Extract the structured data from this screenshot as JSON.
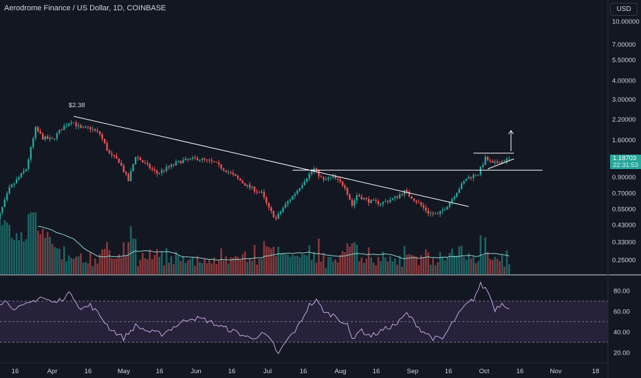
{
  "header": {
    "title": "Aerodrome Finance / US Dollar, 1D, COINBASE",
    "currency": "USD"
  },
  "price_badge": {
    "price": "1.18703",
    "countdown": "22:31:53"
  },
  "colors": {
    "background": "#131722",
    "up": "#26a69a",
    "down": "#ef5350",
    "ma_line": "#8fd7cf",
    "rsi_line": "#c9a7e4",
    "rsi_band": "#2a2540",
    "trendline": "#ffffff",
    "text": "#d1d4dc"
  },
  "chart_data": [
    {
      "type": "candlestick",
      "title": "Aerodrome Finance / US Dollar, 1D, COINBASE",
      "scale": "log",
      "ylim": [
        0.21,
        12.5
      ],
      "y_ticks": [
        10.0,
        7.0,
        5.5,
        4.0,
        3.0,
        2.2,
        1.6,
        0.9,
        0.7,
        0.55,
        0.43,
        0.33,
        0.25
      ],
      "y_tick_labels": [
        "10.00000",
        "7.00000",
        "5.50000",
        "4.00000",
        "3.00000",
        "2.20000",
        "1.60000",
        "0.90000",
        "0.70000",
        "0.55000",
        "0.43000",
        "0.33000",
        "0.25000"
      ],
      "x_tick_labels": [
        "16",
        "Apr",
        "16",
        "May",
        "16",
        "Jun",
        "16",
        "Jul",
        "16",
        "Aug",
        "16",
        "Sep",
        "16",
        "Oct",
        "16",
        "Nov",
        "18"
      ],
      "close_path": [
        {
          "x": "Mar 7",
          "y": 0.38
        },
        {
          "x": "Mar 14",
          "y": 0.75
        },
        {
          "x": "Mar 21",
          "y": 1.02
        },
        {
          "x": "Mar 25",
          "y": 1.9
        },
        {
          "x": "Mar 28",
          "y": 1.65
        },
        {
          "x": "Apr 1",
          "y": 1.6
        },
        {
          "x": "Apr 5",
          "y": 1.9
        },
        {
          "x": "Apr 9",
          "y": 2.15
        },
        {
          "x": "Apr 13",
          "y": 1.9
        },
        {
          "x": "Apr 17",
          "y": 1.92
        },
        {
          "x": "Apr 21",
          "y": 1.75
        },
        {
          "x": "Apr 25",
          "y": 1.28
        },
        {
          "x": "Apr 29",
          "y": 1.15
        },
        {
          "x": "May 3",
          "y": 0.85
        },
        {
          "x": "May 6",
          "y": 1.25
        },
        {
          "x": "May 10",
          "y": 1.1
        },
        {
          "x": "May 15",
          "y": 0.95
        },
        {
          "x": "May 20",
          "y": 1.05
        },
        {
          "x": "May 25",
          "y": 1.15
        },
        {
          "x": "Jun 1",
          "y": 1.2
        },
        {
          "x": "Jun 8",
          "y": 1.12
        },
        {
          "x": "Jun 15",
          "y": 0.95
        },
        {
          "x": "Jun 22",
          "y": 0.78
        },
        {
          "x": "Jun 28",
          "y": 0.7
        },
        {
          "x": "Jul 1",
          "y": 0.55
        },
        {
          "x": "Jul 4",
          "y": 0.47
        },
        {
          "x": "Jul 7",
          "y": 0.56
        },
        {
          "x": "Jul 12",
          "y": 0.7
        },
        {
          "x": "Jul 17",
          "y": 0.9
        },
        {
          "x": "Jul 20",
          "y": 1.02
        },
        {
          "x": "Jul 24",
          "y": 0.85
        },
        {
          "x": "Jul 28",
          "y": 0.9
        },
        {
          "x": "Aug 2",
          "y": 0.78
        },
        {
          "x": "Aug 5",
          "y": 0.58
        },
        {
          "x": "Aug 7",
          "y": 0.68
        },
        {
          "x": "Aug 12",
          "y": 0.62
        },
        {
          "x": "Aug 17",
          "y": 0.6
        },
        {
          "x": "Aug 23",
          "y": 0.65
        },
        {
          "x": "Aug 27",
          "y": 0.72
        },
        {
          "x": "Sep 2",
          "y": 0.6
        },
        {
          "x": "Sep 6",
          "y": 0.52
        },
        {
          "x": "Sep 10",
          "y": 0.5
        },
        {
          "x": "Sep 14",
          "y": 0.58
        },
        {
          "x": "Sep 18",
          "y": 0.72
        },
        {
          "x": "Sep 22",
          "y": 0.88
        },
        {
          "x": "Sep 27",
          "y": 0.95
        },
        {
          "x": "Sep 30",
          "y": 1.2
        },
        {
          "x": "Oct 3",
          "y": 1.1
        },
        {
          "x": "Oct 7",
          "y": 1.15
        },
        {
          "x": "Oct 10",
          "y": 1.187
        }
      ],
      "annotations": [
        {
          "text": "$2.38",
          "x": "Apr 9",
          "y": 2.38
        }
      ],
      "trendlines": [
        {
          "name": "descending resistance",
          "from": {
            "x": "Apr 10",
            "y": 2.3
          },
          "to": {
            "x": "Sep 23",
            "y": 0.57
          }
        },
        {
          "name": "horizontal support",
          "from": {
            "x": "Jul 11",
            "y": 1.0
          },
          "to": {
            "x": "Oct 24",
            "y": 1.0
          }
        },
        {
          "name": "flag top",
          "from": {
            "x": "Sep 25",
            "y": 1.3
          },
          "to": {
            "x": "Oct 12",
            "y": 1.3
          }
        },
        {
          "name": "flag bottom",
          "from": {
            "x": "Oct 1",
            "y": 1.02
          },
          "to": {
            "x": "Oct 12",
            "y": 1.19
          }
        }
      ]
    },
    {
      "type": "line",
      "series": [
        {
          "name": "RSI"
        }
      ],
      "ylim": [
        15,
        92
      ],
      "y_ticks": [
        80,
        60,
        40,
        20
      ],
      "y_tick_labels": [
        "80.00",
        "60.00",
        "40.00",
        "20.00"
      ],
      "reference_lines": [
        70,
        50,
        30
      ],
      "path": [
        {
          "x": "Mar 5",
          "y": 64
        },
        {
          "x": "Mar 12",
          "y": 70
        },
        {
          "x": "Mar 17",
          "y": 62
        },
        {
          "x": "Mar 21",
          "y": 66
        },
        {
          "x": "Mar 27",
          "y": 74
        },
        {
          "x": "Apr 2",
          "y": 68
        },
        {
          "x": "Apr 9",
          "y": 78
        },
        {
          "x": "Apr 13",
          "y": 62
        },
        {
          "x": "Apr 17",
          "y": 66
        },
        {
          "x": "Apr 21",
          "y": 56
        },
        {
          "x": "Apr 25",
          "y": 44
        },
        {
          "x": "May 1",
          "y": 34
        },
        {
          "x": "May 6",
          "y": 46
        },
        {
          "x": "May 12",
          "y": 40
        },
        {
          "x": "May 17",
          "y": 38
        },
        {
          "x": "May 23",
          "y": 46
        },
        {
          "x": "May 29",
          "y": 54
        },
        {
          "x": "Jun 4",
          "y": 52
        },
        {
          "x": "Jun 10",
          "y": 46
        },
        {
          "x": "Jun 17",
          "y": 40
        },
        {
          "x": "Jun 23",
          "y": 34
        },
        {
          "x": "Jun 29",
          "y": 38
        },
        {
          "x": "Jul 3",
          "y": 28
        },
        {
          "x": "Jul 5",
          "y": 18
        },
        {
          "x": "Jul 8",
          "y": 30
        },
        {
          "x": "Jul 13",
          "y": 44
        },
        {
          "x": "Jul 18",
          "y": 66
        },
        {
          "x": "Jul 21",
          "y": 70
        },
        {
          "x": "Jul 25",
          "y": 58
        },
        {
          "x": "Jul 29",
          "y": 56
        },
        {
          "x": "Aug 3",
          "y": 46
        },
        {
          "x": "Aug 5",
          "y": 33
        },
        {
          "x": "Aug 8",
          "y": 42
        },
        {
          "x": "Aug 13",
          "y": 36
        },
        {
          "x": "Aug 18",
          "y": 42
        },
        {
          "x": "Aug 24",
          "y": 48
        },
        {
          "x": "Aug 28",
          "y": 58
        },
        {
          "x": "Sep 3",
          "y": 42
        },
        {
          "x": "Sep 8",
          "y": 34
        },
        {
          "x": "Sep 12",
          "y": 33
        },
        {
          "x": "Sep 16",
          "y": 48
        },
        {
          "x": "Sep 21",
          "y": 64
        },
        {
          "x": "Sep 25",
          "y": 72
        },
        {
          "x": "Sep 28",
          "y": 86
        },
        {
          "x": "Oct 1",
          "y": 80
        },
        {
          "x": "Oct 4",
          "y": 62
        },
        {
          "x": "Oct 7",
          "y": 68
        },
        {
          "x": "Oct 10",
          "y": 64
        }
      ]
    }
  ]
}
